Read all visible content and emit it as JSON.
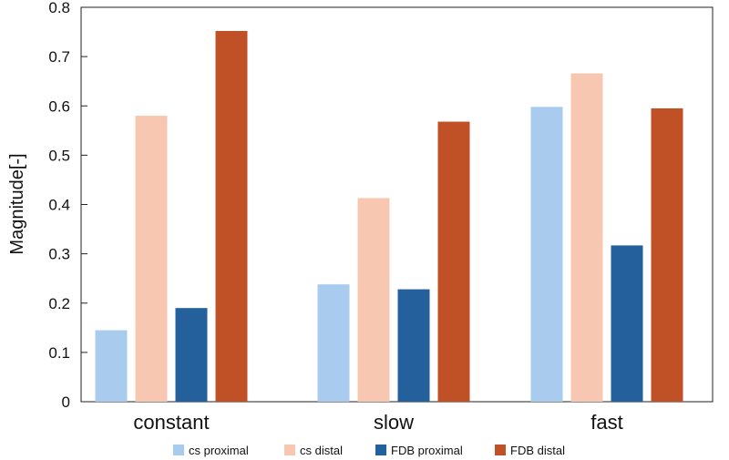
{
  "chart_data": {
    "type": "bar",
    "categories": [
      "constant",
      "slow",
      "fast"
    ],
    "series": [
      {
        "name": "cs proximal",
        "color": "#a9cbee",
        "values": [
          0.145,
          0.238,
          0.598
        ]
      },
      {
        "name": "cs distal",
        "color": "#f8c7b1",
        "values": [
          0.58,
          0.413,
          0.666
        ]
      },
      {
        "name": "FDB proximal",
        "color": "#24609c",
        "values": [
          0.19,
          0.228,
          0.317
        ]
      },
      {
        "name": "FDB distal",
        "color": "#c05026",
        "values": [
          0.752,
          0.568,
          0.595
        ]
      }
    ],
    "ylabel": "Magnitude[-]",
    "xlabel": "",
    "ylim": [
      0,
      0.8
    ],
    "yticks": [
      "0",
      "0.1",
      "0.2",
      "0.3",
      "0.4",
      "0.5",
      "0.6",
      "0.7",
      "0.8"
    ],
    "legend_position": "bottom",
    "grid": false
  }
}
